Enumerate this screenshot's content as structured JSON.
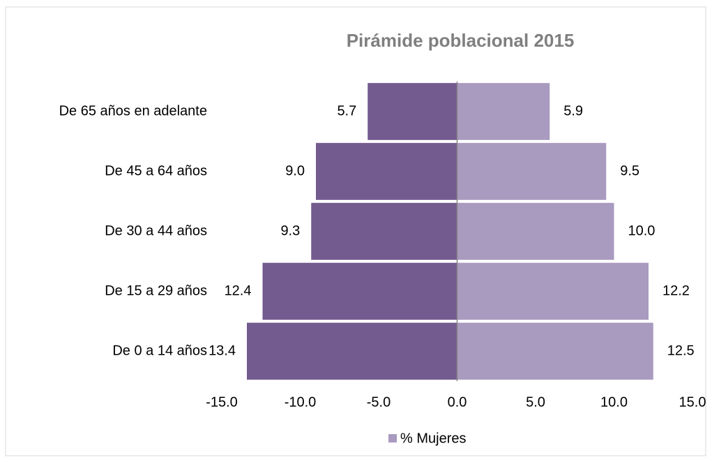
{
  "chart_data": {
    "type": "pyramid",
    "title": "Pirámide poblacional 2015",
    "categories": [
      "De 0 a 14 años",
      "De 15 a 29 años",
      "De 30 a 44 años",
      "De 45 a 64 años",
      "De 65 años en adelante"
    ],
    "series": [
      {
        "color": "#735a8f",
        "values": [
          -13.4,
          -12.4,
          -9.3,
          -9.0,
          -5.7
        ],
        "value_labels": [
          "13.4",
          "12.4",
          "9.3",
          "9.0",
          "5.7"
        ]
      },
      {
        "name": "% Mujeres",
        "color": "#a99abf",
        "values": [
          12.5,
          12.2,
          10.0,
          9.5,
          5.9
        ],
        "value_labels": [
          "12.5",
          "12.2",
          "10.0",
          "9.5",
          "5.9"
        ]
      }
    ],
    "xlim": [
      -15,
      15
    ],
    "xticks": [
      {
        "value": -15,
        "label": "-15.0"
      },
      {
        "value": -10,
        "label": "-10.0"
      },
      {
        "value": -5,
        "label": "-5.0"
      },
      {
        "value": 0,
        "label": "0.0"
      },
      {
        "value": 5,
        "label": "5.0"
      },
      {
        "value": 10,
        "label": "10.0"
      },
      {
        "value": 15,
        "label": "15.0"
      }
    ],
    "legend": "bottom"
  }
}
